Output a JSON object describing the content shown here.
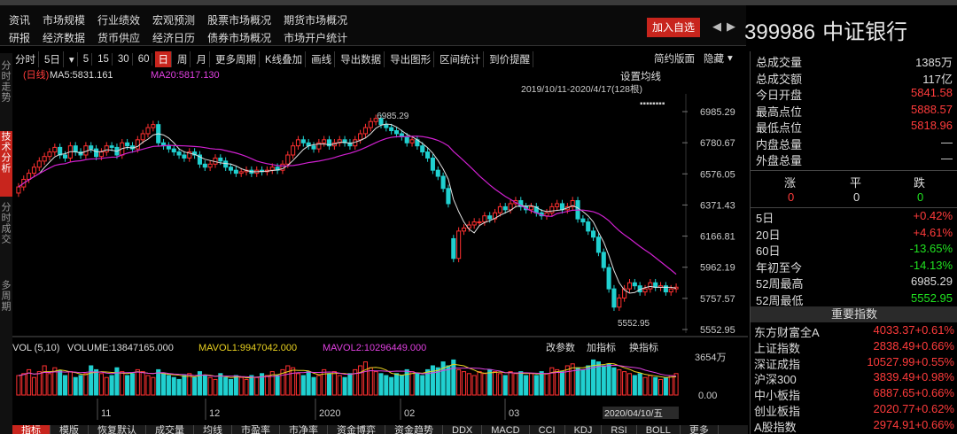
{
  "menu": {
    "row1": [
      "资讯",
      "市场规模",
      "行业绩效",
      "宏观预测",
      "股票市场概况",
      "期货市场概况"
    ],
    "row2": [
      "研报",
      "经济数据",
      "货币供应",
      "经济日历",
      "债券市场概况",
      "市场开户统计"
    ],
    "add_favorite": "加入自选"
  },
  "stock": {
    "code": "399986",
    "name": "中证银行"
  },
  "toolbar": {
    "items": [
      "分时",
      "5日",
      "▾",
      "5",
      "15",
      "30",
      "60",
      "日",
      "周",
      "月",
      "更多周期",
      "K线叠加",
      "画线",
      "导出数据",
      "导出图形",
      "区间统计",
      "到价提醒"
    ],
    "active": "日",
    "right_items": [
      "简约版面",
      "隐藏"
    ]
  },
  "left_rail": [
    {
      "label": "分时走势",
      "active": false
    },
    {
      "label": "技术分析",
      "active": true
    },
    {
      "label": "分时成交",
      "active": false
    },
    {
      "label": "多周期",
      "active": false
    }
  ],
  "chart_header": {
    "period": "(日线)",
    "ma5": "MA5:5831.161",
    "ma20": "MA20:5817.130",
    "setting": "设置均线",
    "range": "2019/10/11-2020/4/17(128根)"
  },
  "vol_header": {
    "vol": "VOL (5,10)",
    "volume": "VOLUME:13847165.000",
    "mavol1": "MAVOL1:9947042.000",
    "mavol2": "MAVOL2:10296449.000",
    "buttons": [
      "改参数",
      "加指标",
      "换指标"
    ]
  },
  "annotations": {
    "high": "6985.29",
    "low": "5552.95"
  },
  "cursor_date": "2020/04/10/五",
  "chart_data": {
    "type": "candlestick",
    "y_ticks": [
      "6985.29",
      "6780.67",
      "6576.05",
      "6371.43",
      "6166.81",
      "5962.19",
      "5757.57",
      "5552.95"
    ],
    "ylim": [
      5552.95,
      6985.29
    ],
    "vol_ticks": [
      "3654万",
      "0.00"
    ],
    "x_labels": [
      "11",
      "12",
      "2020",
      "02",
      "03"
    ],
    "close": [
      6490,
      6540,
      6580,
      6620,
      6660,
      6690,
      6720,
      6750,
      6700,
      6680,
      6760,
      6720,
      6700,
      6760,
      6740,
      6690,
      6720,
      6760,
      6750,
      6700,
      6780,
      6760,
      6740,
      6800,
      6840,
      6880,
      6900,
      6780,
      6760,
      6740,
      6720,
      6700,
      6680,
      6720,
      6700,
      6640,
      6620,
      6640,
      6680,
      6660,
      6620,
      6600,
      6580,
      6590,
      6600,
      6580,
      6600,
      6590,
      6600,
      6620,
      6600,
      6640,
      6700,
      6760,
      6800,
      6780,
      6760,
      6740,
      6780,
      6800,
      6760,
      6780,
      6800,
      6780,
      6760,
      6800,
      6840,
      6880,
      6920,
      6940,
      6900,
      6880,
      6860,
      6840,
      6820,
      6780,
      6800,
      6760,
      6720,
      6680,
      6600,
      6560,
      6480,
      6380,
      6020,
      6200,
      6220,
      6240,
      6260,
      6260,
      6300,
      6280,
      6320,
      6360,
      6340,
      6380,
      6400,
      6360,
      6340,
      6360,
      6320,
      6300,
      6320,
      6360,
      6380,
      6340,
      6360,
      6400,
      6280,
      6260,
      6200,
      6160,
      6060,
      5960,
      5820,
      5700,
      5760,
      5820,
      5860,
      5840,
      5800,
      5820,
      5860,
      5830,
      5840,
      5800,
      5820,
      5831
    ],
    "open": [
      6450,
      6490,
      6540,
      6580,
      6620,
      6660,
      6690,
      6720,
      6750,
      6700,
      6680,
      6760,
      6720,
      6700,
      6760,
      6740,
      6690,
      6720,
      6760,
      6750,
      6700,
      6780,
      6760,
      6740,
      6800,
      6840,
      6880,
      6900,
      6780,
      6760,
      6740,
      6720,
      6700,
      6680,
      6720,
      6700,
      6640,
      6620,
      6640,
      6680,
      6660,
      6620,
      6600,
      6580,
      6590,
      6600,
      6580,
      6600,
      6590,
      6600,
      6620,
      6600,
      6640,
      6700,
      6760,
      6800,
      6780,
      6760,
      6740,
      6780,
      6800,
      6760,
      6780,
      6800,
      6780,
      6760,
      6800,
      6840,
      6880,
      6920,
      6940,
      6900,
      6880,
      6860,
      6840,
      6820,
      6780,
      6800,
      6760,
      6720,
      6680,
      6600,
      6560,
      6480,
      6150,
      6020,
      6200,
      6220,
      6240,
      6260,
      6260,
      6300,
      6280,
      6320,
      6360,
      6340,
      6380,
      6400,
      6360,
      6340,
      6360,
      6320,
      6300,
      6320,
      6360,
      6380,
      6340,
      6360,
      6400,
      6280,
      6260,
      6200,
      6160,
      6060,
      5960,
      5820,
      5700,
      5760,
      5820,
      5860,
      5840,
      5800,
      5820,
      5860,
      5830,
      5840,
      5800,
      5820
    ],
    "vol": [
      20,
      22,
      26,
      18,
      24,
      30,
      22,
      28,
      25,
      20,
      24,
      18,
      20,
      22,
      30,
      26,
      22,
      18,
      20,
      28,
      24,
      20,
      22,
      26,
      24,
      20,
      18,
      26,
      22,
      20,
      18,
      16,
      20,
      22,
      18,
      24,
      20,
      18,
      16,
      22,
      18,
      16,
      20,
      18,
      16,
      20,
      18,
      22,
      20,
      24,
      20,
      26,
      30,
      28,
      22,
      20,
      24,
      18,
      20,
      26,
      22,
      24,
      20,
      18,
      22,
      26,
      30,
      34,
      28,
      24,
      22,
      20,
      18,
      22,
      20,
      26,
      24,
      22,
      20,
      26,
      30,
      28,
      34,
      30,
      36,
      26,
      24,
      22,
      20,
      24,
      22,
      26,
      24,
      22,
      20,
      24,
      22,
      24,
      20,
      22,
      20,
      24,
      22,
      28,
      26,
      24,
      30,
      32,
      28,
      26,
      30,
      36,
      34,
      30,
      32,
      28,
      26,
      24,
      22,
      20,
      22,
      18,
      20,
      18,
      16,
      18,
      20,
      22
    ],
    "ma5_line": "MA5",
    "ma20_line": "MA20"
  },
  "right_panel": {
    "stats": [
      {
        "label": "总成交量",
        "value": "1385万",
        "color": "white"
      },
      {
        "label": "总成交额",
        "value": "117亿",
        "color": "white"
      },
      {
        "label": "今日开盘",
        "value": "5841.58",
        "color": "red"
      },
      {
        "label": "最高点位",
        "value": "5888.57",
        "color": "red"
      },
      {
        "label": "最低点位",
        "value": "5818.96",
        "color": "red"
      },
      {
        "label": "内盘总量",
        "value": "—",
        "color": "white"
      },
      {
        "label": "外盘总量",
        "value": "—",
        "color": "white"
      }
    ],
    "breadth_labels": [
      "涨",
      "平",
      "跌"
    ],
    "breadth_values": [
      "0",
      "0",
      "0"
    ],
    "perf": [
      {
        "label": "5日",
        "value": "+0.42%",
        "color": "red"
      },
      {
        "label": "20日",
        "value": "+4.61%",
        "color": "red"
      },
      {
        "label": "60日",
        "value": "-13.65%",
        "color": "green"
      },
      {
        "label": "年初至今",
        "value": "-14.13%",
        "color": "green"
      },
      {
        "label": "52周最高",
        "value": "6985.29",
        "color": "white"
      },
      {
        "label": "52周最低",
        "value": "5552.95",
        "color": "green"
      }
    ],
    "index_head": "重要指数",
    "indices": [
      {
        "name": "东方财富全A",
        "value": "4033.37+0.61%"
      },
      {
        "name": "上证指数",
        "value": "2838.49+0.66%"
      },
      {
        "name": "深证成指",
        "value": "10527.99+0.55%"
      },
      {
        "name": "沪深300",
        "value": "3839.49+0.98%"
      },
      {
        "name": "中小板指",
        "value": "6887.65+0.66%"
      },
      {
        "name": "创业板指",
        "value": "2020.77+0.62%"
      },
      {
        "name": "A股指数",
        "value": "2974.91+0.66%"
      }
    ]
  },
  "bottom_tabs": {
    "items": [
      "指标",
      "模版",
      "恢复默认",
      "成交量",
      "均线",
      "市盈率",
      "市净率",
      "资金博弈",
      "资金趋势",
      "DDX",
      "MACD",
      "CCI",
      "KDJ",
      "RSI",
      "BOLL",
      "更多"
    ],
    "active": "指标"
  }
}
